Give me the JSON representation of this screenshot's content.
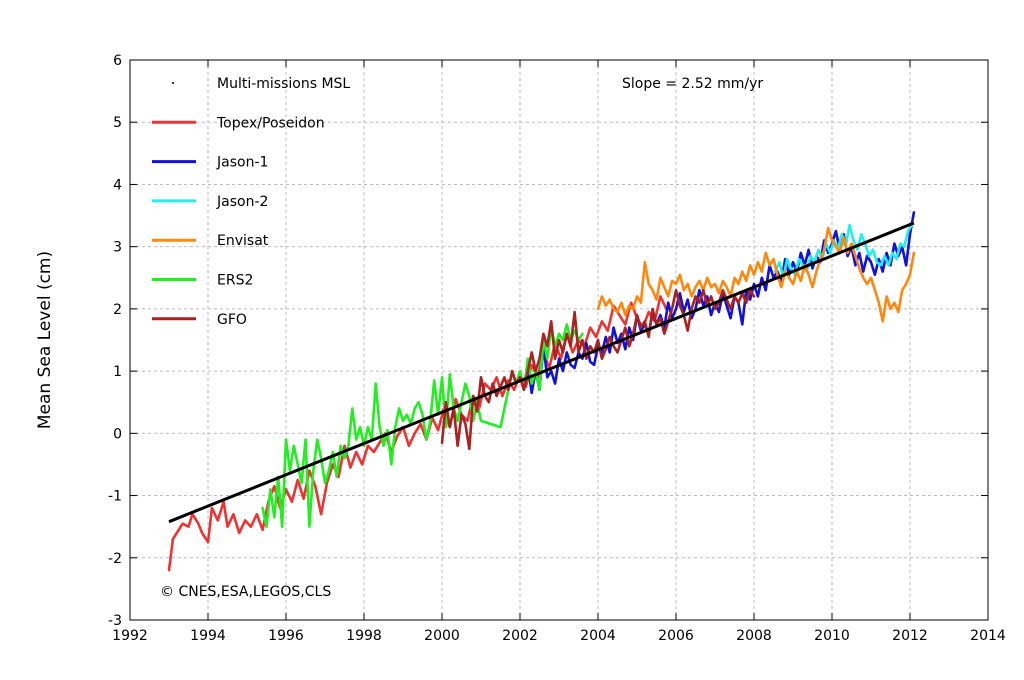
{
  "chart_data": {
    "type": "line",
    "title": "",
    "xlabel": "",
    "ylabel": "Mean Sea Level (cm)",
    "xlim": [
      1992,
      2014
    ],
    "ylim": [
      -3,
      6
    ],
    "xticks": [
      "1992",
      "1994",
      "1996",
      "1998",
      "2000",
      "2002",
      "2004",
      "2006",
      "2008",
      "2010",
      "2012",
      "2014"
    ],
    "yticks": [
      "-3",
      "-2",
      "-1",
      "0",
      "1",
      "2",
      "3",
      "4",
      "5",
      "6"
    ],
    "grid": true,
    "legend_position": "top-left",
    "annotations": {
      "slope": "Slope = 2.52 mm/yr",
      "copyright": "© CNES,ESA,LEGOS,CLS"
    },
    "trend": {
      "name": "Multi-missions MSL",
      "color": "#000000",
      "x": [
        1993.0,
        2012.1
      ],
      "y": [
        -1.42,
        3.38
      ]
    },
    "series": [
      {
        "name": "Topex/Poseidon",
        "color": "#ee3333",
        "x": [
          1993.0,
          1993.1,
          1993.2,
          1993.35,
          1993.5,
          1993.6,
          1993.75,
          1993.85,
          1994.0,
          1994.1,
          1994.25,
          1994.4,
          1994.5,
          1994.65,
          1994.8,
          1994.95,
          1995.1,
          1995.25,
          1995.4,
          1995.55,
          1995.7,
          1995.85,
          1996.0,
          1996.15,
          1996.3,
          1996.45,
          1996.6,
          1996.75,
          1996.9,
          1997.05,
          1997.2,
          1997.35,
          1997.5,
          1997.65,
          1997.8,
          1997.95,
          1998.1,
          1998.25,
          1998.4,
          1998.55,
          1998.7,
          1998.85,
          1999.0,
          1999.15,
          1999.3,
          1999.45,
          1999.6,
          1999.75,
          1999.9,
          2000.05,
          2000.2,
          2000.35,
          2000.5,
          2000.65,
          2000.8,
          2000.95,
          2001.1,
          2001.25,
          2001.4,
          2001.55,
          2001.7,
          2001.85,
          2002.0,
          2002.15,
          2002.3,
          2002.45,
          2002.6,
          2002.75,
          2002.9,
          2003.05,
          2003.2,
          2003.35,
          2003.5,
          2003.65,
          2003.8,
          2003.95,
          2004.1,
          2004.25,
          2004.4,
          2004.55,
          2004.7,
          2004.85,
          2005.0,
          2005.15,
          2005.3,
          2005.45,
          2005.6,
          2005.75
        ],
        "y": [
          -2.2,
          -1.7,
          -1.6,
          -1.45,
          -1.5,
          -1.3,
          -1.45,
          -1.6,
          -1.75,
          -1.2,
          -1.4,
          -1.1,
          -1.5,
          -1.3,
          -1.6,
          -1.4,
          -1.5,
          -1.3,
          -1.55,
          -1.1,
          -0.85,
          -1.2,
          -0.9,
          -1.1,
          -0.75,
          -1.05,
          -0.6,
          -0.85,
          -1.3,
          -0.8,
          -0.5,
          -0.7,
          -0.2,
          -0.55,
          -0.3,
          -0.5,
          -0.2,
          -0.3,
          -0.15,
          0.0,
          -0.3,
          -0.05,
          0.1,
          -0.2,
          0.0,
          0.15,
          -0.1,
          0.25,
          0.05,
          0.4,
          0.1,
          0.55,
          0.3,
          0.2,
          0.6,
          0.4,
          0.8,
          0.7,
          0.9,
          0.6,
          0.85,
          0.7,
          0.95,
          0.75,
          1.1,
          0.9,
          1.3,
          1.05,
          1.45,
          1.2,
          1.6,
          1.3,
          1.5,
          1.4,
          1.7,
          1.55,
          1.8,
          1.65,
          2.05,
          1.9,
          1.75,
          2.1,
          1.85,
          1.7,
          1.95,
          1.8,
          2.2,
          2.0
        ]
      },
      {
        "name": "Jason-1",
        "color": "#1111dd",
        "x": [
          2002.0,
          2002.1,
          2002.2,
          2002.3,
          2002.4,
          2002.5,
          2002.6,
          2002.7,
          2002.8,
          2002.9,
          2003.0,
          2003.1,
          2003.2,
          2003.3,
          2003.4,
          2003.5,
          2003.6,
          2003.7,
          2003.8,
          2003.9,
          2004.0,
          2004.1,
          2004.2,
          2004.3,
          2004.4,
          2004.5,
          2004.6,
          2004.7,
          2004.8,
          2004.9,
          2005.0,
          2005.1,
          2005.2,
          2005.3,
          2005.4,
          2005.5,
          2005.6,
          2005.7,
          2005.8,
          2005.9,
          2006.0,
          2006.1,
          2006.2,
          2006.3,
          2006.4,
          2006.5,
          2006.6,
          2006.7,
          2006.8,
          2006.9,
          2007.0,
          2007.1,
          2007.2,
          2007.3,
          2007.4,
          2007.5,
          2007.6,
          2007.7,
          2007.8,
          2007.9,
          2008.0,
          2008.1,
          2008.2,
          2008.3,
          2008.4,
          2008.5,
          2008.6,
          2008.7,
          2008.8,
          2008.9,
          2009.0,
          2009.1,
          2009.2,
          2009.3,
          2009.4,
          2009.5,
          2009.6,
          2009.7,
          2009.8,
          2009.9,
          2010.0,
          2010.1,
          2010.2,
          2010.3,
          2010.4,
          2010.5,
          2010.6,
          2010.7,
          2010.8,
          2010.9,
          2011.0,
          2011.1,
          2011.2,
          2011.3,
          2011.4,
          2011.5,
          2011.6,
          2011.7,
          2011.8,
          2011.9,
          2012.0,
          2012.1
        ],
        "y": [
          0.9,
          0.75,
          1.1,
          0.65,
          1.0,
          0.7,
          1.4,
          0.9,
          1.0,
          0.8,
          1.2,
          1.0,
          1.3,
          1.1,
          1.05,
          1.3,
          1.2,
          1.45,
          1.15,
          1.1,
          1.4,
          1.3,
          1.55,
          1.3,
          1.7,
          1.45,
          1.6,
          1.35,
          1.7,
          1.5,
          1.9,
          1.65,
          1.75,
          1.6,
          1.95,
          1.75,
          1.9,
          1.7,
          2.1,
          1.85,
          2.0,
          2.25,
          1.95,
          2.15,
          1.85,
          2.0,
          2.3,
          2.05,
          2.2,
          1.9,
          2.1,
          1.95,
          2.25,
          2.05,
          1.85,
          2.2,
          2.1,
          1.75,
          2.3,
          2.15,
          2.4,
          2.2,
          2.5,
          2.3,
          2.7,
          2.5,
          2.6,
          2.45,
          2.8,
          2.55,
          2.75,
          2.6,
          2.9,
          2.7,
          2.95,
          2.65,
          2.85,
          2.75,
          3.1,
          2.9,
          3.05,
          3.25,
          2.95,
          3.2,
          2.85,
          3.0,
          2.7,
          2.9,
          2.6,
          2.85,
          2.75,
          2.55,
          2.8,
          2.6,
          2.9,
          2.7,
          3.05,
          2.85,
          3.0,
          2.7,
          3.2,
          3.55
        ]
      },
      {
        "name": "Jason-2",
        "color": "#22eeee",
        "x": [
          2008.55,
          2008.65,
          2008.75,
          2008.85,
          2008.95,
          2009.05,
          2009.15,
          2009.25,
          2009.35,
          2009.45,
          2009.55,
          2009.65,
          2009.75,
          2009.85,
          2009.95,
          2010.05,
          2010.15,
          2010.25,
          2010.35,
          2010.45,
          2010.55,
          2010.65,
          2010.75,
          2010.85,
          2010.95,
          2011.05,
          2011.15,
          2011.25,
          2011.35,
          2011.45,
          2011.55,
          2011.65,
          2011.75,
          2011.85,
          2011.95,
          2012.05
        ],
        "y": [
          2.6,
          2.75,
          2.5,
          2.8,
          2.65,
          2.55,
          2.8,
          2.7,
          2.6,
          2.85,
          2.75,
          2.95,
          2.8,
          3.05,
          2.9,
          3.1,
          2.95,
          3.2,
          3.0,
          3.35,
          3.1,
          2.95,
          3.2,
          3.05,
          2.85,
          2.95,
          2.75,
          2.7,
          2.85,
          2.7,
          2.9,
          2.8,
          3.05,
          3.0,
          3.25,
          3.35
        ]
      },
      {
        "name": "Envisat",
        "color": "#ff8811",
        "x": [
          2004.0,
          2004.1,
          2004.2,
          2004.3,
          2004.4,
          2004.5,
          2004.6,
          2004.7,
          2004.8,
          2004.9,
          2005.0,
          2005.1,
          2005.2,
          2005.3,
          2005.4,
          2005.5,
          2005.6,
          2005.7,
          2005.8,
          2005.9,
          2006.0,
          2006.1,
          2006.2,
          2006.3,
          2006.4,
          2006.5,
          2006.6,
          2006.7,
          2006.8,
          2006.9,
          2007.0,
          2007.1,
          2007.2,
          2007.3,
          2007.4,
          2007.5,
          2007.6,
          2007.7,
          2007.8,
          2007.9,
          2008.0,
          2008.1,
          2008.2,
          2008.3,
          2008.4,
          2008.5,
          2008.6,
          2008.7,
          2008.8,
          2008.9,
          2009.0,
          2009.1,
          2009.2,
          2009.3,
          2009.4,
          2009.5,
          2009.6,
          2009.7,
          2009.8,
          2009.9,
          2010.0,
          2010.1,
          2010.2,
          2010.3,
          2010.4,
          2010.5,
          2010.6,
          2010.7,
          2010.8,
          2010.9,
          2011.0,
          2011.1,
          2011.2,
          2011.3,
          2011.4,
          2011.5,
          2011.6,
          2011.7,
          2011.8,
          2011.9,
          2012.0,
          2012.1
        ],
        "y": [
          2.0,
          2.2,
          2.05,
          2.15,
          2.0,
          1.95,
          2.1,
          1.9,
          2.05,
          2.0,
          2.2,
          2.1,
          2.75,
          2.4,
          2.3,
          2.15,
          2.5,
          2.35,
          2.2,
          2.45,
          2.4,
          2.55,
          2.3,
          2.4,
          2.2,
          2.35,
          2.45,
          2.3,
          2.5,
          2.35,
          2.4,
          2.25,
          2.45,
          2.35,
          2.2,
          2.5,
          2.4,
          2.6,
          2.45,
          2.7,
          2.55,
          2.75,
          2.6,
          2.9,
          2.7,
          2.8,
          2.55,
          2.35,
          2.6,
          2.5,
          2.4,
          2.6,
          2.45,
          2.7,
          2.55,
          2.35,
          2.6,
          2.8,
          2.95,
          3.3,
          3.1,
          3.0,
          2.9,
          3.15,
          2.9,
          3.05,
          2.85,
          2.65,
          2.5,
          2.4,
          2.5,
          2.3,
          2.1,
          1.8,
          2.2,
          2.0,
          2.1,
          1.95,
          2.3,
          2.4,
          2.55,
          2.9
        ]
      },
      {
        "name": "ERS2",
        "color": "#22ee22",
        "x": [
          1995.4,
          1995.5,
          1995.6,
          1995.7,
          1995.8,
          1995.9,
          1996.0,
          1996.1,
          1996.2,
          1996.3,
          1996.4,
          1996.5,
          1996.6,
          1996.7,
          1996.8,
          1996.9,
          1997.0,
          1997.1,
          1997.2,
          1997.3,
          1997.4,
          1997.5,
          1997.6,
          1997.7,
          1997.8,
          1997.9,
          1998.0,
          1998.1,
          1998.2,
          1998.3,
          1998.4,
          1998.5,
          1998.6,
          1998.7,
          1998.8,
          1998.9,
          1999.0,
          1999.1,
          1999.2,
          1999.3,
          1999.4,
          1999.5,
          1999.6,
          1999.7,
          1999.8,
          1999.9,
          2000.0,
          2000.1,
          2000.2,
          2000.3,
          2000.4,
          2000.5,
          2000.6,
          2000.7,
          2000.8,
          2000.9,
          2001.0,
          2001.5,
          2001.6,
          2001.7,
          2001.8,
          2001.9,
          2002.0,
          2002.1,
          2002.2,
          2002.3,
          2002.4,
          2002.5,
          2002.6,
          2002.7,
          2002.8,
          2002.9,
          2003.0,
          2003.1,
          2003.2,
          2003.3,
          2003.4,
          2003.5,
          2003.6
        ],
        "y": [
          -1.2,
          -1.5,
          -0.9,
          -1.35,
          -0.7,
          -1.5,
          -0.1,
          -0.6,
          -0.2,
          -0.5,
          -0.8,
          -0.1,
          -1.5,
          -0.6,
          -0.1,
          -0.4,
          -0.8,
          -0.6,
          -0.3,
          -0.7,
          -0.2,
          -0.4,
          -0.2,
          0.4,
          -0.1,
          0.1,
          -0.2,
          0.1,
          -0.1,
          0.8,
          0.1,
          -0.2,
          0.05,
          -0.5,
          0.1,
          0.4,
          0.2,
          0.3,
          0.15,
          0.4,
          0.5,
          0.3,
          -0.1,
          0.2,
          0.85,
          0.3,
          0.9,
          0.1,
          0.95,
          0.4,
          0.2,
          0.5,
          0.8,
          0.6,
          0.2,
          0.5,
          0.2,
          0.1,
          0.4,
          0.7,
          1.0,
          0.8,
          1.0,
          0.7,
          1.2,
          0.8,
          1.0,
          0.7,
          1.5,
          1.2,
          1.7,
          1.4,
          1.6,
          1.5,
          1.75,
          1.5,
          1.65,
          1.5,
          1.6
        ]
      },
      {
        "name": "GFO",
        "color": "#aa2222",
        "x": [
          2000.0,
          2000.1,
          2000.2,
          2000.3,
          2000.4,
          2000.5,
          2000.6,
          2000.7,
          2000.8,
          2000.9,
          2001.0,
          2001.1,
          2001.2,
          2001.3,
          2001.4,
          2001.5,
          2001.6,
          2001.7,
          2001.8,
          2001.9,
          2002.0,
          2002.1,
          2002.2,
          2002.3,
          2002.4,
          2002.5,
          2002.6,
          2002.7,
          2002.8,
          2002.9,
          2003.0,
          2003.1,
          2003.2,
          2003.3,
          2003.4,
          2003.5,
          2003.6,
          2003.7,
          2003.8,
          2003.9,
          2004.0,
          2004.1,
          2004.2,
          2004.3,
          2004.4,
          2004.5,
          2004.6,
          2004.7,
          2004.8,
          2004.9,
          2005.0,
          2005.1,
          2005.2,
          2005.3,
          2005.4,
          2005.5,
          2005.6,
          2005.7,
          2005.8,
          2005.9,
          2006.0,
          2006.1,
          2006.2,
          2006.3,
          2006.4,
          2006.5,
          2006.6,
          2006.7,
          2006.8,
          2006.9,
          2007.0,
          2007.1,
          2007.2,
          2007.3,
          2007.4,
          2007.5,
          2007.6,
          2007.7,
          2007.8,
          2007.9,
          2008.0
        ],
        "y": [
          -0.15,
          0.5,
          0.1,
          0.4,
          -0.2,
          0.3,
          0.15,
          -0.25,
          0.6,
          0.35,
          0.9,
          0.6,
          0.5,
          0.8,
          0.6,
          0.75,
          0.9,
          0.7,
          1.0,
          0.8,
          0.9,
          0.7,
          1.0,
          1.3,
          1.0,
          1.2,
          1.6,
          1.4,
          1.8,
          1.2,
          1.5,
          1.3,
          1.6,
          1.4,
          1.95,
          1.3,
          1.5,
          1.2,
          1.4,
          1.3,
          1.5,
          1.2,
          1.35,
          1.55,
          1.4,
          1.3,
          1.5,
          1.7,
          1.4,
          1.6,
          1.9,
          1.7,
          1.8,
          1.55,
          2.0,
          1.75,
          1.85,
          1.6,
          1.8,
          2.0,
          2.3,
          2.05,
          1.9,
          1.65,
          2.0,
          2.2,
          2.1,
          2.3,
          2.05,
          2.2,
          2.0,
          2.1,
          2.3,
          2.15,
          2.0,
          2.2,
          2.1,
          2.25,
          2.1,
          2.3,
          2.2
        ]
      }
    ]
  }
}
